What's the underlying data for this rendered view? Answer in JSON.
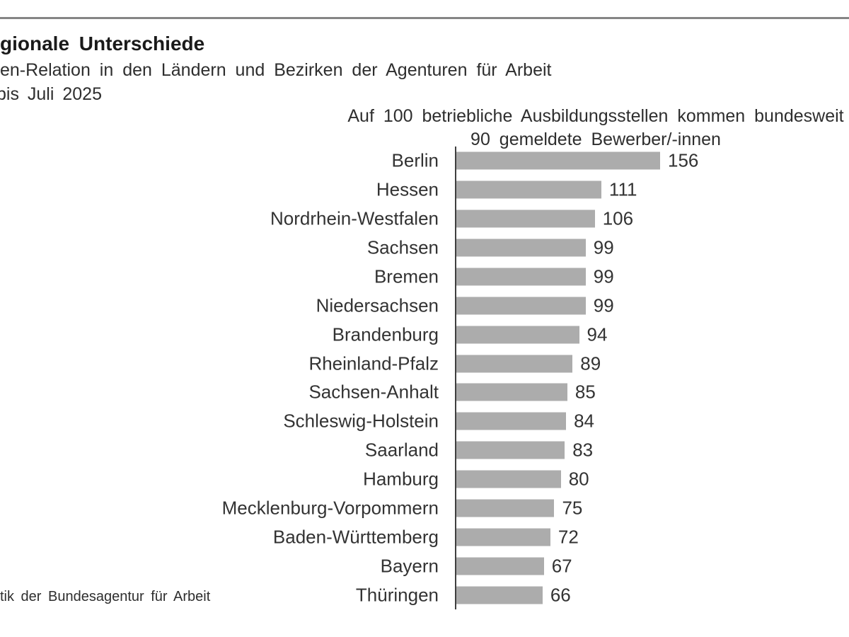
{
  "header": {
    "title_fragment": "gionale Unterschiede",
    "subtitle_fragment": "en-Relation in den Ländern und Bezirken der Agenturen für Arbeit",
    "period_fragment": "bis Juli 2025"
  },
  "footer": {
    "source_fragment": "tik der Bundesagentur für Arbeit"
  },
  "colors": {
    "bar": "#acacac",
    "axis": "#3f3f3f",
    "top_rule": "#858585",
    "text": "#333333"
  },
  "chart_data": {
    "type": "bar",
    "orientation": "horizontal",
    "title": "",
    "xlabel": "",
    "ylabel": "",
    "annotation_lines": [
      "Auf 100 betriebliche Ausbildungsstellen kommen bundesweit",
      "90 gemeldete Bewerber/-innen"
    ],
    "categories": [
      "Berlin",
      "Hessen",
      "Nordrhein-Westfalen",
      "Sachsen",
      "Bremen",
      "Niedersachsen",
      "Brandenburg",
      "Rheinland-Pfalz",
      "Sachsen-Anhalt",
      "Schleswig-Holstein",
      "Saarland",
      "Hamburg",
      "Mecklenburg-Vorpommern",
      "Baden-Württemberg",
      "Bayern",
      "Thüringen"
    ],
    "values": [
      156,
      111,
      106,
      99,
      99,
      99,
      94,
      89,
      85,
      84,
      83,
      80,
      75,
      72,
      67,
      66
    ],
    "value_labels_shown": true,
    "xlim": [
      0,
      160
    ],
    "grid": false,
    "legend": false
  }
}
